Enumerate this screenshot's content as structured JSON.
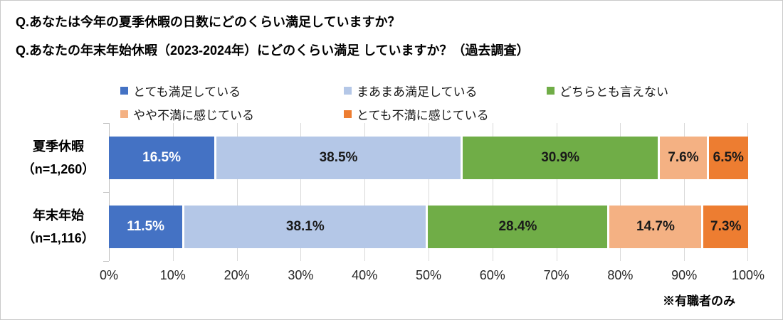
{
  "titles": [
    "Q.あなたは今年の夏季休暇の日数にどのくらい満足していますか？",
    "Q.あなたの年末年始休暇（2023-2024年）にどのくらい満足 していますか？（過去調査）"
  ],
  "footnote": "※有職者のみ",
  "colors": {
    "very_satisfied": "#4472C4",
    "somewhat_satisfied": "#B4C7E7",
    "neutral": "#70AD47",
    "somewhat_dissatisfied": "#F4B183",
    "very_dissatisfied": "#ED7D31",
    "gridline": "#D9D9D9",
    "axis_line": "#BFBFBF"
  },
  "chart_data": {
    "type": "bar",
    "orientation": "horizontal-stacked",
    "xlim": [
      0,
      100
    ],
    "x_ticks": [
      "0%",
      "10%",
      "20%",
      "30%",
      "40%",
      "50%",
      "60%",
      "70%",
      "80%",
      "90%",
      "100%"
    ],
    "grid": true,
    "legend_position": "top",
    "value_suffix": "%",
    "categories": [
      {
        "label": "夏季休暇",
        "n_label": "（n=1,260）"
      },
      {
        "label": "年末年始",
        "n_label": "（n=1,116）"
      }
    ],
    "series": [
      {
        "name": "とても満足している",
        "color": "#4472C4",
        "label_color": "#FFFFFF",
        "values": [
          16.5,
          11.5
        ]
      },
      {
        "name": "まあまあ満足している",
        "color": "#B4C7E7",
        "label_color": "#1A1A1A",
        "values": [
          38.5,
          38.1
        ]
      },
      {
        "name": "どちらとも言えない",
        "color": "#70AD47",
        "label_color": "#1A1A1A",
        "values": [
          30.9,
          28.4
        ]
      },
      {
        "name": "やや不満に感じている",
        "color": "#F4B183",
        "label_color": "#1A1A1A",
        "values": [
          7.6,
          14.7
        ]
      },
      {
        "name": "とても不満に感じている",
        "color": "#ED7D31",
        "label_color": "#1A1A1A",
        "values": [
          6.5,
          7.3
        ]
      }
    ]
  }
}
